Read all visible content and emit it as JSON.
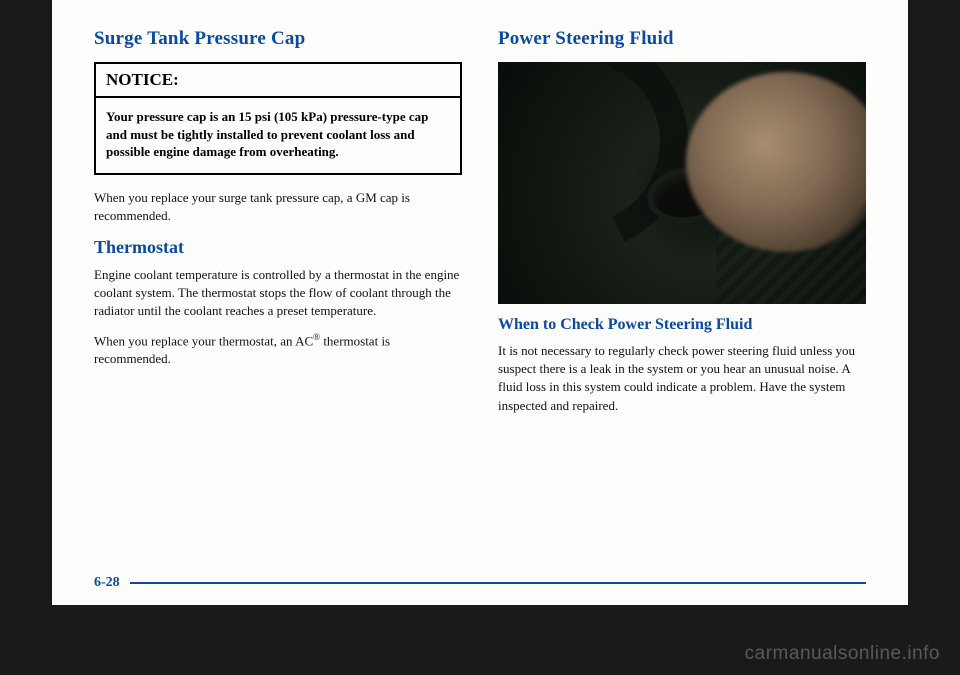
{
  "colors": {
    "heading": "#0b4aa0",
    "text": "#111111",
    "page_bg": "#fdfdfb",
    "outer_bg": "#1a1a1a",
    "rule": "#0b4aa0"
  },
  "left": {
    "heading": "Surge Tank Pressure Cap",
    "notice_label": "NOTICE:",
    "notice_body": "Your pressure cap is an 15 psi (105 kPa) pressure-type cap and must be tightly installed to prevent coolant loss and possible engine damage from overheating.",
    "para1": "When you replace your surge tank pressure cap, a GM cap is recommended.",
    "subheading": "Thermostat",
    "para2": "Engine coolant temperature is controlled by a thermostat in the engine coolant system. The thermostat stops the flow of coolant through the radiator until the coolant reaches a preset temperature.",
    "para3_pre": "When you replace your thermostat, an AC",
    "para3_sup": "®",
    "para3_post": " thermostat is recommended."
  },
  "right": {
    "heading": "Power Steering Fluid",
    "subheading": "When to Check Power Steering Fluid",
    "para1": "It is not necessary to regularly check power steering fluid unless you suspect there is a leak in the system or you hear an unusual noise. A fluid loss in this system could indicate a problem. Have the system inspected and repaired."
  },
  "page_number": "6-28",
  "watermark": "carmanualsonline.info"
}
